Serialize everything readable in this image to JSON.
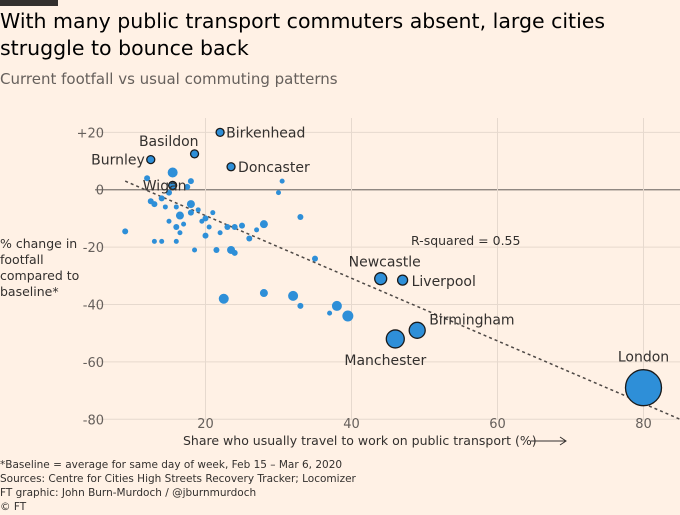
{
  "header": {
    "title": "With many public transport commuters absent, large cities struggle to bounce back",
    "subtitle": "Current footfall vs usual commuting patterns"
  },
  "footnotes": {
    "baseline": "*Baseline = average for same day of week, Feb 15 – Mar 6, 2020",
    "sources": "Sources: Centre for Cities High Streets Recovery Tracker; Locomizer",
    "credit": "FT graphic: John Burn-Murdoch / @jburnmurdoch",
    "copyright": "© FT"
  },
  "colors": {
    "background": "#fff1e5",
    "point_fill": "#2e8fd8",
    "point_stroke": "#1a1a1a",
    "grid": "#e6d9ce",
    "zero_line": "#807973",
    "trend_line": "#4d4845"
  },
  "chart_data": {
    "type": "scatter",
    "title": "With many public transport commuters absent, large cities struggle to bounce back",
    "subtitle": "Current footfall vs usual commuting patterns",
    "xlabel": "Share who usually travel to work on public transport (%)",
    "ylabel": "% change in footfall compared to baseline*",
    "xlim": [
      5,
      85
    ],
    "ylim": [
      -82,
      25
    ],
    "xticks": [
      20,
      40,
      60,
      80
    ],
    "yticks": [
      20,
      0,
      -20,
      -40,
      -60,
      -80
    ],
    "ytick_labels": [
      "+20",
      "0",
      "-20",
      "-40",
      "-60",
      "-80"
    ],
    "grid": true,
    "annotation": "R-squared = 0.55",
    "trend_line": {
      "x": [
        9,
        85
      ],
      "y": [
        3,
        -80
      ]
    },
    "labeled_points": [
      {
        "name": "Birkenhead",
        "x": 22,
        "y": 20,
        "size": 4
      },
      {
        "name": "Basildon",
        "x": 18.5,
        "y": 12.5,
        "size": 4
      },
      {
        "name": "Burnley",
        "x": 12.5,
        "y": 10.5,
        "size": 4
      },
      {
        "name": "Doncaster",
        "x": 23.5,
        "y": 8,
        "size": 4
      },
      {
        "name": "Wigan",
        "x": 15.5,
        "y": 1.5,
        "size": 4
      },
      {
        "name": "Newcastle",
        "x": 44,
        "y": -31,
        "size": 6
      },
      {
        "name": "Liverpool",
        "x": 47,
        "y": -31.5,
        "size": 5
      },
      {
        "name": "Birmingham",
        "x": 49,
        "y": -49,
        "size": 8
      },
      {
        "name": "Manchester",
        "x": 46,
        "y": -52,
        "size": 9
      },
      {
        "name": "London",
        "x": 80,
        "y": -69,
        "size": 18
      }
    ],
    "points": [
      {
        "x": 9,
        "y": -14.5,
        "size": 3
      },
      {
        "x": 12,
        "y": 4,
        "size": 3
      },
      {
        "x": 12.5,
        "y": -4,
        "size": 3
      },
      {
        "x": 13,
        "y": -5,
        "size": 3
      },
      {
        "x": 13,
        "y": -18,
        "size": 2.5
      },
      {
        "x": 14,
        "y": -18,
        "size": 2.5
      },
      {
        "x": 14,
        "y": -3,
        "size": 3
      },
      {
        "x": 14.5,
        "y": -6,
        "size": 2.5
      },
      {
        "x": 15,
        "y": -1,
        "size": 3
      },
      {
        "x": 15,
        "y": -11,
        "size": 2.5
      },
      {
        "x": 15.5,
        "y": 6,
        "size": 5
      },
      {
        "x": 16,
        "y": -6,
        "size": 2.5
      },
      {
        "x": 16,
        "y": -13,
        "size": 3
      },
      {
        "x": 16,
        "y": -18,
        "size": 2.5
      },
      {
        "x": 16.5,
        "y": -9,
        "size": 4
      },
      {
        "x": 16.5,
        "y": -15,
        "size": 2.5
      },
      {
        "x": 17,
        "y": -12,
        "size": 2.5
      },
      {
        "x": 17.5,
        "y": 1,
        "size": 3
      },
      {
        "x": 18,
        "y": -5,
        "size": 4
      },
      {
        "x": 18,
        "y": -8,
        "size": 3
      },
      {
        "x": 18.5,
        "y": -21,
        "size": 2.5
      },
      {
        "x": 18,
        "y": 3,
        "size": 3
      },
      {
        "x": 19,
        "y": -7,
        "size": 2.5
      },
      {
        "x": 19.5,
        "y": -11,
        "size": 2.5
      },
      {
        "x": 20,
        "y": -10,
        "size": 3
      },
      {
        "x": 20,
        "y": -16,
        "size": 3
      },
      {
        "x": 20.5,
        "y": -13,
        "size": 2.5
      },
      {
        "x": 21,
        "y": -8,
        "size": 2.5
      },
      {
        "x": 21.5,
        "y": -21,
        "size": 3
      },
      {
        "x": 22,
        "y": -15,
        "size": 2.5
      },
      {
        "x": 23,
        "y": -13,
        "size": 3
      },
      {
        "x": 23.5,
        "y": -21,
        "size": 4
      },
      {
        "x": 24,
        "y": -13,
        "size": 3
      },
      {
        "x": 24,
        "y": -22,
        "size": 3
      },
      {
        "x": 25,
        "y": -12.5,
        "size": 3
      },
      {
        "x": 26,
        "y": -17,
        "size": 3
      },
      {
        "x": 27,
        "y": -14,
        "size": 2.5
      },
      {
        "x": 28,
        "y": -12,
        "size": 4
      },
      {
        "x": 30,
        "y": -1,
        "size": 2.5
      },
      {
        "x": 30.5,
        "y": 3,
        "size": 2.5
      },
      {
        "x": 33,
        "y": -9.5,
        "size": 3
      },
      {
        "x": 35,
        "y": -24,
        "size": 3
      },
      {
        "x": 22.5,
        "y": -38,
        "size": 5
      },
      {
        "x": 28,
        "y": -36,
        "size": 4
      },
      {
        "x": 32,
        "y": -37,
        "size": 5
      },
      {
        "x": 33,
        "y": -40.5,
        "size": 3
      },
      {
        "x": 37,
        "y": -43,
        "size": 2.5
      },
      {
        "x": 38,
        "y": -40.5,
        "size": 5
      },
      {
        "x": 39.5,
        "y": -44,
        "size": 5.5
      }
    ]
  }
}
